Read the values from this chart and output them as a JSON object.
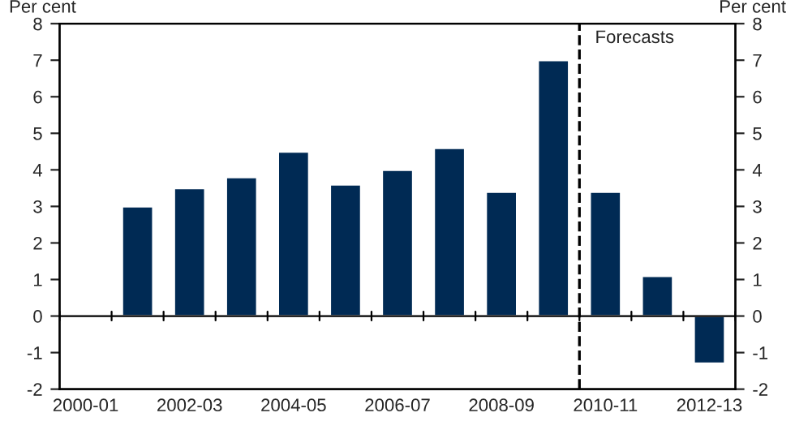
{
  "chart_data": {
    "type": "bar",
    "categories": [
      "2000-01",
      null,
      "2002-03",
      null,
      "2004-05",
      null,
      "2006-07",
      null,
      "2008-09",
      null,
      "2010-11",
      null,
      "2012-13"
    ],
    "series": [
      {
        "color": "#002a54",
        "values": [
          null,
          3.0,
          3.5,
          3.8,
          4.5,
          3.6,
          4.0,
          4.6,
          3.4,
          7.0,
          3.4,
          1.1,
          -1.3
        ]
      }
    ],
    "ylabel": "Per cent",
    "y2label": "Per cent",
    "ylim": [
      -2,
      8
    ],
    "yticks": [
      -2,
      -1,
      0,
      1,
      2,
      3,
      4,
      5,
      6,
      7,
      8
    ],
    "y2lim": [
      -2,
      8
    ],
    "y2ticks": [
      -2,
      -1,
      0,
      1,
      2,
      3,
      4,
      5,
      6,
      7,
      8
    ],
    "ref_lines": [
      {
        "axis": "x",
        "value": "2010-11",
        "label": "Forecasts",
        "color": "#000000",
        "line_style": "dashed"
      }
    ],
    "grid": false,
    "legend": false
  }
}
